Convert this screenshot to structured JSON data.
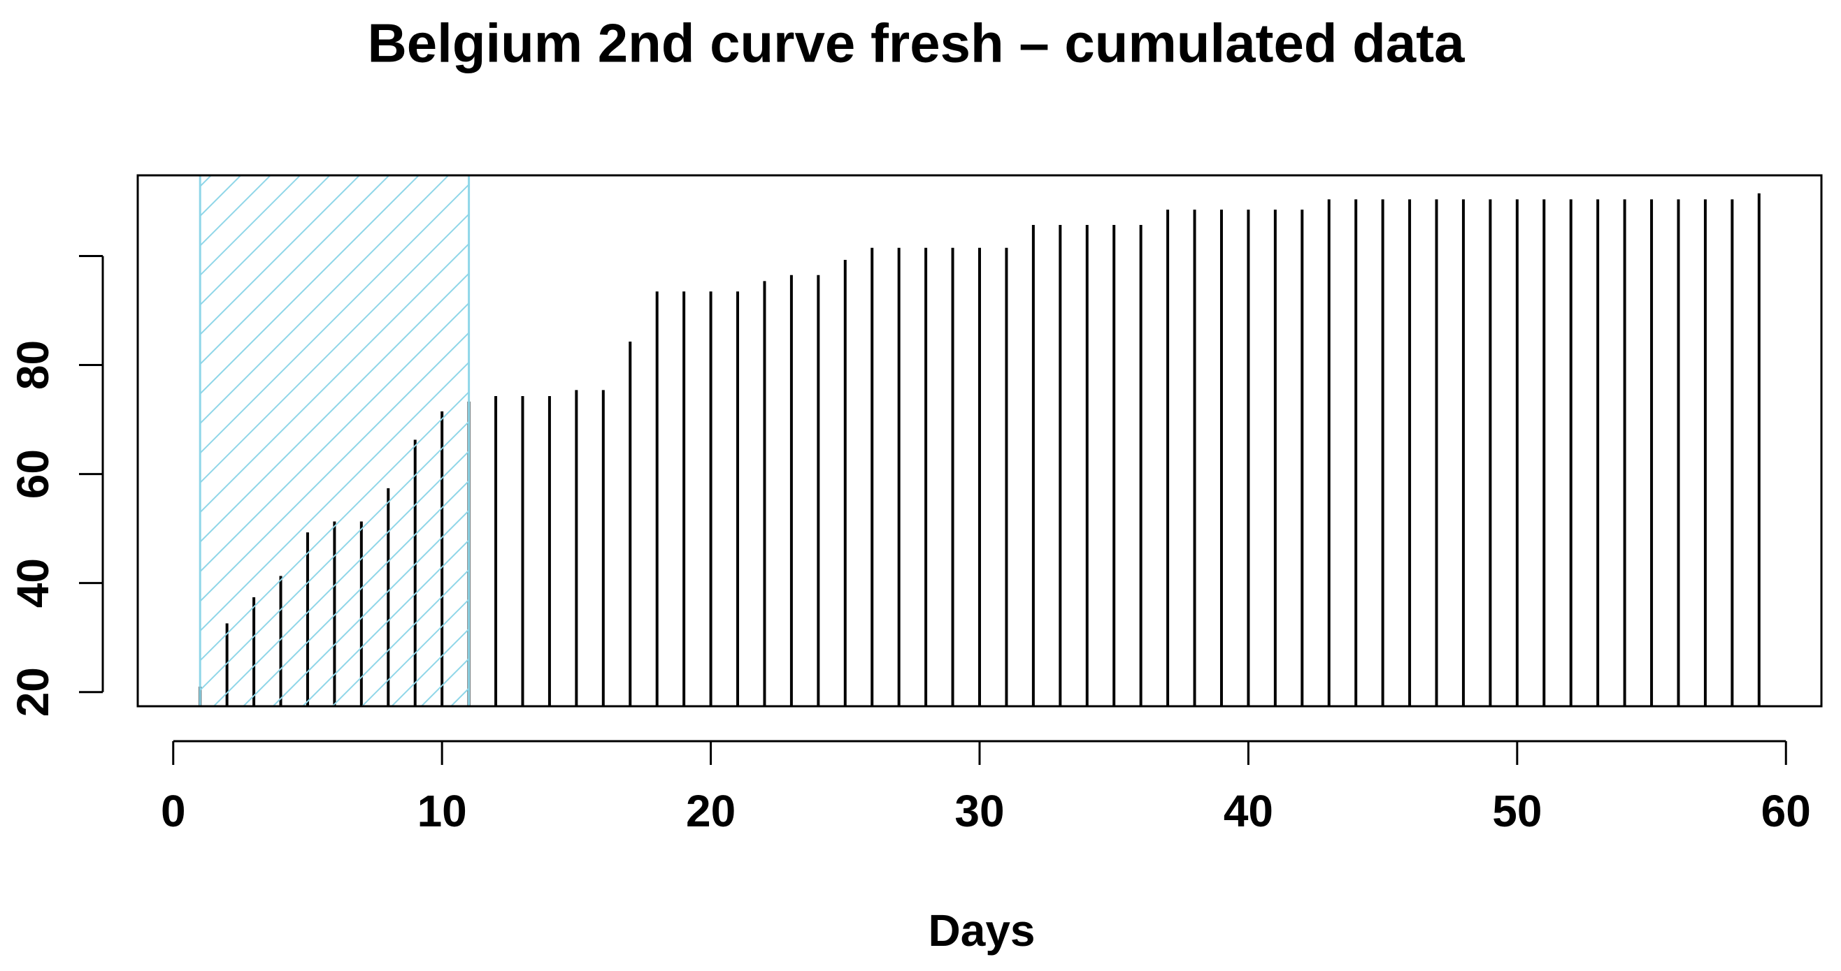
{
  "chart_data": {
    "type": "bar",
    "title": "Belgium 2nd curve fresh – cumulated data",
    "x_label": "Days",
    "x": [
      1,
      2,
      3,
      4,
      5,
      6,
      7,
      8,
      9,
      10,
      11,
      12,
      13,
      14,
      15,
      16,
      17,
      18,
      19,
      20,
      21,
      22,
      23,
      24,
      25,
      26,
      27,
      28,
      29,
      30,
      31,
      32,
      33,
      34,
      35,
      36,
      37,
      38,
      39,
      40,
      41,
      42,
      43,
      44,
      45,
      46,
      47,
      48,
      49,
      50,
      51,
      52,
      53,
      54,
      55,
      56,
      57,
      58,
      59
    ],
    "values": [
      21,
      32.6,
      37.4,
      41.3,
      49.3,
      51.3,
      51.3,
      57.4,
      66.3,
      71.5,
      73.3,
      74.3,
      74.3,
      74.3,
      75.4,
      75.4,
      84.3,
      93.5,
      93.5,
      93.5,
      93.5,
      95.4,
      96.5,
      96.5,
      99.3,
      101.5,
      101.5,
      101.5,
      101.5,
      101.5,
      101.5,
      105.7,
      105.7,
      105.7,
      105.7,
      105.7,
      108.5,
      108.5,
      108.5,
      108.5,
      108.5,
      108.5,
      110.4,
      110.4,
      110.4,
      110.4,
      110.4,
      110.4,
      110.4,
      110.4,
      110.4,
      110.4,
      110.4,
      110.4,
      110.4,
      110.4,
      110.4,
      110.4,
      111.5
    ],
    "color": "#000000",
    "highlight": {
      "x": [
        1,
        11
      ],
      "color": "#8fd6e8"
    },
    "xlim": [
      -1.32,
      61.32
    ],
    "xticks": [
      0,
      10,
      20,
      30,
      40,
      50,
      60
    ],
    "ylim": [
      17.4,
      114.8
    ],
    "yticks": [
      20,
      40,
      60,
      80,
      {
        "value": 100,
        "label": null
      }
    ]
  }
}
